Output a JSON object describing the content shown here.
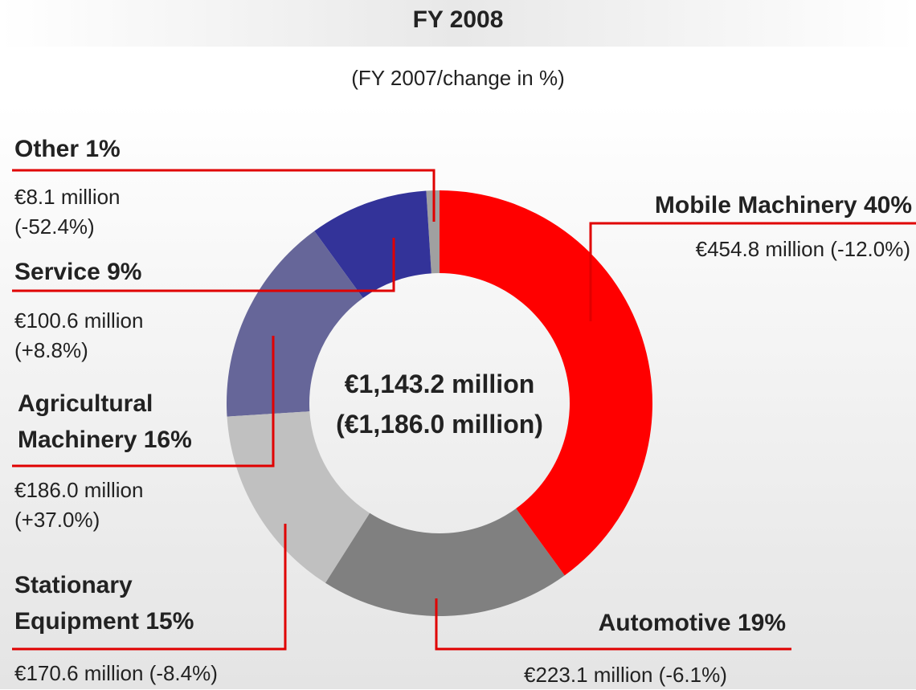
{
  "chart_data": {
    "type": "pie",
    "donut": true,
    "title": "FY 2008",
    "subtitle": "(FY 2007/change in %)",
    "center_label": [
      "€1,143.2 million",
      "(€1,186.0 million)"
    ],
    "categories": [
      "Mobile Machinery",
      "Automotive",
      "Stationary Equipment",
      "Agricultural Machinery",
      "Service",
      "Other"
    ],
    "values": [
      40,
      19,
      15,
      16,
      9,
      1
    ],
    "value_labels": [
      "40%",
      "19%",
      "15%",
      "16%",
      "9%",
      "1%"
    ],
    "details": [
      "€454.8 million (-12.0%)",
      "€223.1 million (-6.1%)",
      "€170.6 million (-8.4%)",
      "€186.0 million (+37.0%)",
      "€100.6 million (+8.8%)",
      "€8.1 million (-52.4%)"
    ],
    "colors": [
      "#ff0000",
      "#808080",
      "#c0c0c0",
      "#666699",
      "#333399",
      "#a0a0a0"
    ]
  }
}
